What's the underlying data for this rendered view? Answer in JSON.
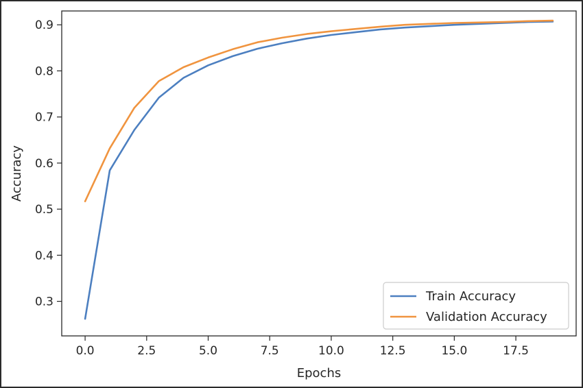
{
  "chart_data": {
    "type": "line",
    "title": "",
    "xlabel": "Epochs",
    "ylabel": "Accuracy",
    "xlim": [
      -0.95,
      19.95
    ],
    "ylim": [
      0.225,
      0.93
    ],
    "x_ticks": [
      0,
      2.5,
      5,
      7.5,
      10,
      12.5,
      15,
      17.5
    ],
    "x_tick_labels": [
      "0.0",
      "2.5",
      "5.0",
      "7.5",
      "10.0",
      "12.5",
      "15.0",
      "17.5"
    ],
    "y_ticks": [
      0.3,
      0.4,
      0.5,
      0.6,
      0.7,
      0.8,
      0.9
    ],
    "y_tick_labels": [
      "0.3",
      "0.4",
      "0.5",
      "0.6",
      "0.7",
      "0.8",
      "0.9"
    ],
    "grid": false,
    "legend_position": "lower-right",
    "x": [
      0,
      1,
      2,
      3,
      4,
      5,
      6,
      7,
      8,
      9,
      10,
      11,
      12,
      13,
      14,
      15,
      16,
      17,
      18,
      19
    ],
    "series": [
      {
        "name": "Train Accuracy",
        "color": "#4c7fc0",
        "values": [
          0.262,
          0.584,
          0.672,
          0.742,
          0.785,
          0.812,
          0.832,
          0.848,
          0.86,
          0.87,
          0.878,
          0.884,
          0.89,
          0.894,
          0.897,
          0.9,
          0.902,
          0.904,
          0.906,
          0.907
        ]
      },
      {
        "name": "Validation Accuracy",
        "color": "#f0943f",
        "values": [
          0.517,
          0.632,
          0.72,
          0.778,
          0.808,
          0.829,
          0.847,
          0.862,
          0.872,
          0.88,
          0.886,
          0.891,
          0.896,
          0.9,
          0.902,
          0.904,
          0.905,
          0.906,
          0.908,
          0.909
        ]
      }
    ]
  }
}
